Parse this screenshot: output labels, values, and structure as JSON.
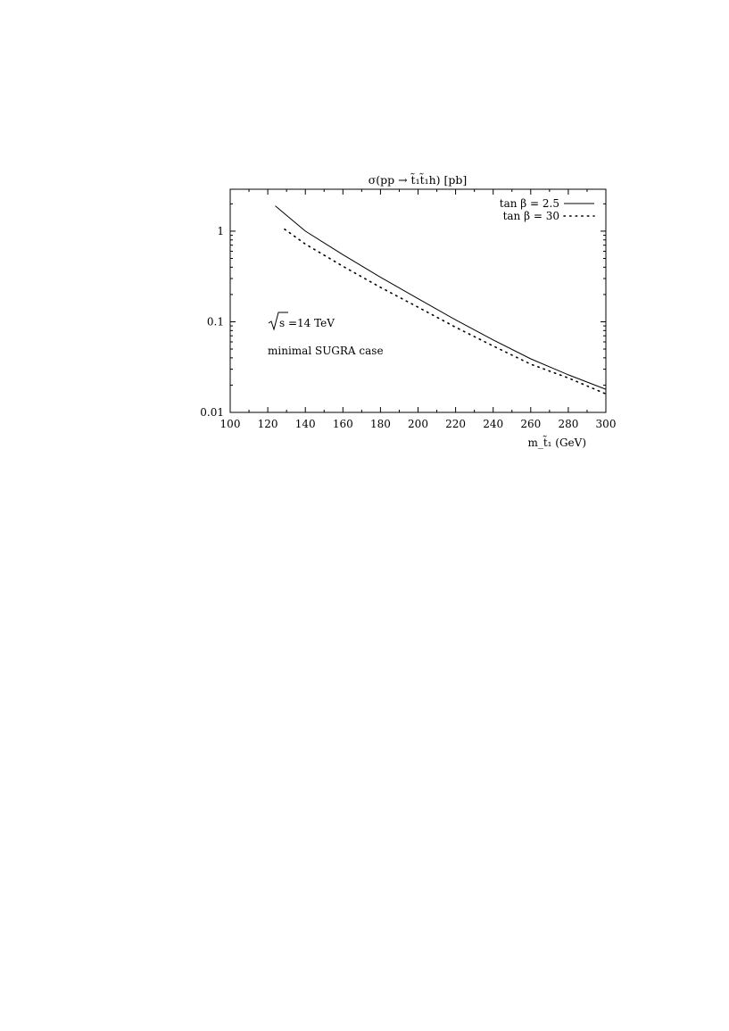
{
  "chart_data": {
    "type": "line",
    "title": "σ(pp → t̃₁t̃₁h) [pb]",
    "xlabel": "m_t̃₁ (GeV)",
    "ylabel": "",
    "xlim": [
      100,
      300
    ],
    "ylim": [
      0.01,
      3
    ],
    "yscale": "log",
    "x_ticks": [
      100,
      120,
      140,
      160,
      180,
      200,
      220,
      240,
      260,
      280,
      300
    ],
    "y_ticks": [
      0.01,
      0.1,
      1
    ],
    "x_tick_labels": [
      "100",
      "120",
      "140",
      "160",
      "180",
      "200",
      "220",
      "240",
      "260",
      "280",
      "300"
    ],
    "y_tick_labels": [
      "0.01",
      "0.1",
      "1"
    ],
    "grid": false,
    "legend_position": "top-right",
    "annotations": [
      "√s =14 TeV",
      "minimal SUGRA case"
    ],
    "series": [
      {
        "name": "tan β = 2.5",
        "style": "solid",
        "x": [
          124,
          140,
          160,
          180,
          200,
          220,
          240,
          260,
          280,
          300
        ],
        "y": [
          1.9,
          1.0,
          0.55,
          0.31,
          0.18,
          0.105,
          0.063,
          0.039,
          0.026,
          0.018
        ]
      },
      {
        "name": "tan β = 30",
        "style": "dotted",
        "x": [
          129,
          140,
          160,
          180,
          200,
          220,
          240,
          260,
          280,
          300
        ],
        "y": [
          1.05,
          0.72,
          0.41,
          0.24,
          0.145,
          0.087,
          0.054,
          0.034,
          0.024,
          0.016
        ]
      }
    ]
  }
}
